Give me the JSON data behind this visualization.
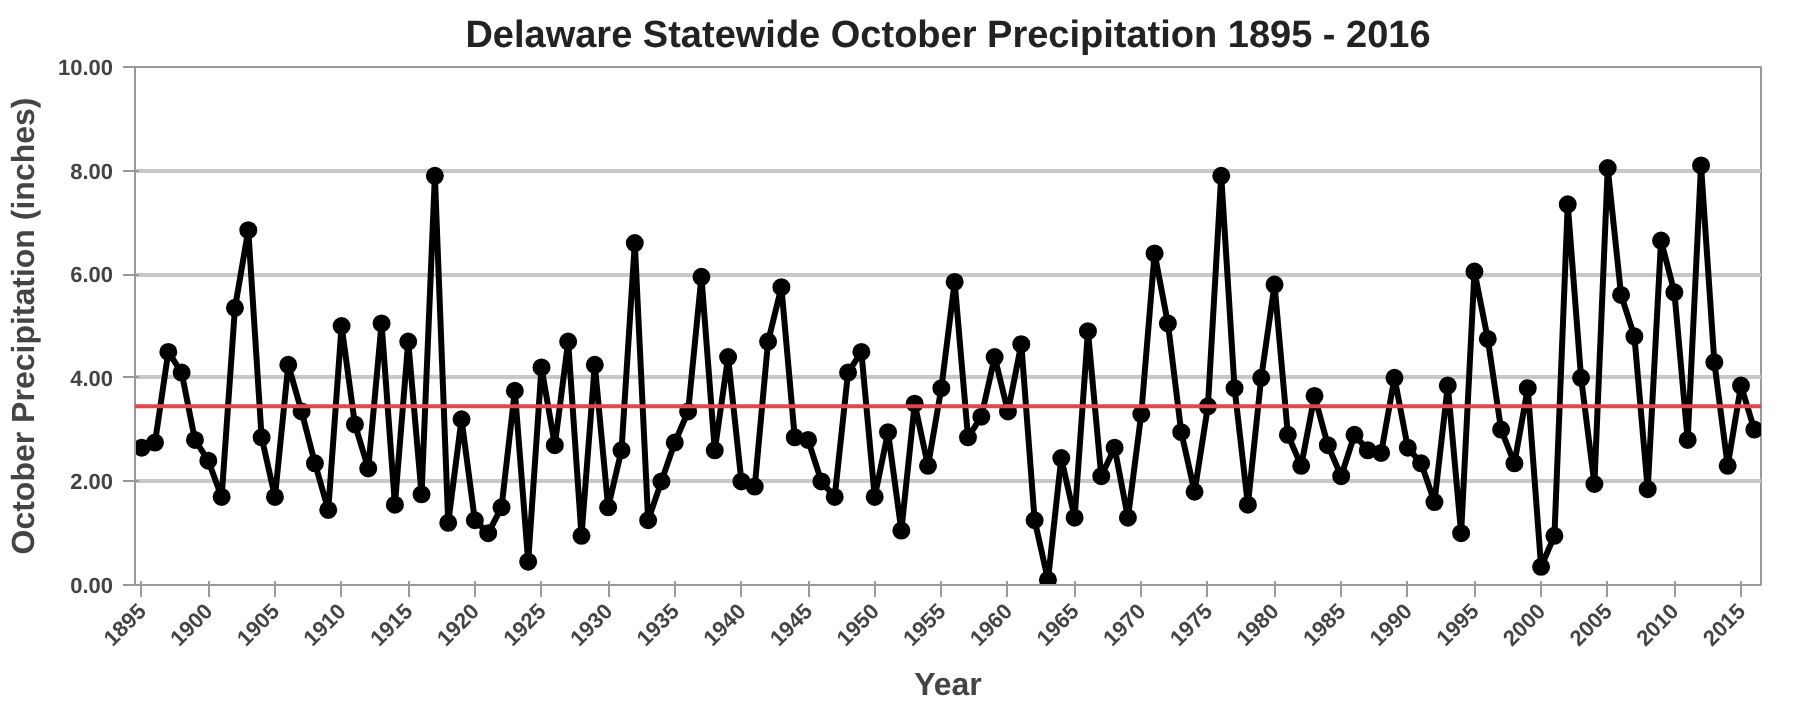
{
  "chart_data": {
    "type": "line",
    "title": "Delaware Statewide October Precipitation 1895 - 2016",
    "xlabel": "Year",
    "ylabel": "October Precipitation (inches)",
    "x": [
      1895,
      1896,
      1897,
      1898,
      1899,
      1900,
      1901,
      1902,
      1903,
      1904,
      1905,
      1906,
      1907,
      1908,
      1909,
      1910,
      1911,
      1912,
      1913,
      1914,
      1915,
      1916,
      1917,
      1918,
      1919,
      1920,
      1921,
      1922,
      1923,
      1924,
      1925,
      1926,
      1927,
      1928,
      1929,
      1930,
      1931,
      1932,
      1933,
      1934,
      1935,
      1936,
      1937,
      1938,
      1939,
      1940,
      1941,
      1942,
      1943,
      1944,
      1945,
      1946,
      1947,
      1948,
      1949,
      1950,
      1951,
      1952,
      1953,
      1954,
      1955,
      1956,
      1957,
      1958,
      1959,
      1960,
      1961,
      1962,
      1963,
      1964,
      1965,
      1966,
      1967,
      1968,
      1969,
      1970,
      1971,
      1972,
      1973,
      1974,
      1975,
      1976,
      1977,
      1978,
      1979,
      1980,
      1981,
      1982,
      1983,
      1984,
      1985,
      1986,
      1987,
      1988,
      1989,
      1990,
      1991,
      1992,
      1993,
      1994,
      1995,
      1996,
      1997,
      1998,
      1999,
      2000,
      2001,
      2002,
      2003,
      2004,
      2005,
      2006,
      2007,
      2008,
      2009,
      2010,
      2011,
      2012,
      2013,
      2014,
      2015,
      2016
    ],
    "series": [
      {
        "color": "#000000",
        "values": [
          2.65,
          2.75,
          4.5,
          4.1,
          2.8,
          2.4,
          1.7,
          5.35,
          6.85,
          2.85,
          1.7,
          4.25,
          3.35,
          2.35,
          1.45,
          5.0,
          3.1,
          2.25,
          5.05,
          1.55,
          4.7,
          1.75,
          7.9,
          1.2,
          3.2,
          1.25,
          1.0,
          1.5,
          3.75,
          0.45,
          4.2,
          2.7,
          4.7,
          0.95,
          4.25,
          1.5,
          2.6,
          6.6,
          1.25,
          2.0,
          2.75,
          3.35,
          5.95,
          2.6,
          4.4,
          2.0,
          1.9,
          4.7,
          5.75,
          2.85,
          2.8,
          2.0,
          1.7,
          4.1,
          4.5,
          1.7,
          2.95,
          1.05,
          3.5,
          2.3,
          3.8,
          5.85,
          2.85,
          3.25,
          4.4,
          3.35,
          4.65,
          1.25,
          0.1,
          2.45,
          1.3,
          4.9,
          2.1,
          2.65,
          1.3,
          3.3,
          6.4,
          5.05,
          2.95,
          1.8,
          3.45,
          7.9,
          3.8,
          1.55,
          4.0,
          5.8,
          2.9,
          2.3,
          3.65,
          2.7,
          2.1,
          2.9,
          2.6,
          2.55,
          4.0,
          2.65,
          2.35,
          1.6,
          3.85,
          1.0,
          6.05,
          4.75,
          3.0,
          2.35,
          3.8,
          0.35,
          0.95,
          7.35,
          4.0,
          1.95,
          8.05,
          5.6,
          4.8,
          1.85,
          6.65,
          5.65,
          2.8,
          8.1,
          4.3,
          2.3,
          3.85,
          3.0
        ]
      }
    ],
    "xlim": [
      1894.5,
      2016.5
    ],
    "xticks": [
      1895,
      1900,
      1905,
      1910,
      1915,
      1920,
      1925,
      1930,
      1935,
      1940,
      1945,
      1950,
      1955,
      1960,
      1965,
      1970,
      1975,
      1980,
      1985,
      1990,
      1995,
      2000,
      2005,
      2010,
      2015
    ],
    "ylim": [
      0,
      10
    ],
    "yticks": [
      {
        "value": 0,
        "label": "0.00"
      },
      {
        "value": 2,
        "label": "2.00"
      },
      {
        "value": 4,
        "label": "4.00"
      },
      {
        "value": 6,
        "label": "6.00"
      },
      {
        "value": 8,
        "label": "8.00"
      },
      {
        "value": 10,
        "label": "10.00"
      }
    ],
    "ref_lines": [
      {
        "axis": "y",
        "value": 3.45,
        "color": "#e0474c"
      }
    ],
    "grid": "y",
    "marker": "circle",
    "line_style": "solid"
  }
}
